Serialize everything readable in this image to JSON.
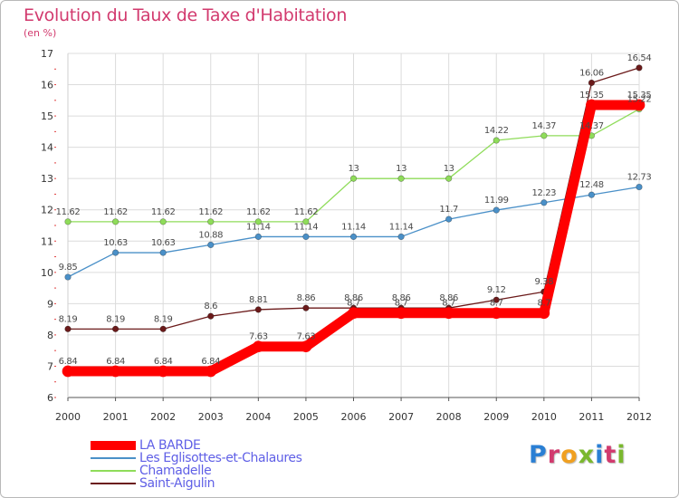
{
  "header": {
    "title": "Evolution du Taux de Taxe d'Habitation",
    "subtitle": "(en %)"
  },
  "logo": {
    "text": "Proxiti",
    "letter_colors": [
      "#2a7fd4",
      "#d23a6e",
      "#f0a020",
      "#7ab82e",
      "#2a7fd4",
      "#d23a6e",
      "#7ab82e"
    ]
  },
  "chart_data": {
    "type": "line",
    "title": "Evolution du Taux de Taxe d'Habitation",
    "subtitle": "(en %)",
    "x": [
      "2000",
      "2001",
      "2002",
      "2003",
      "2004",
      "2005",
      "2006",
      "2007",
      "2008",
      "2009",
      "2010",
      "2011",
      "2012"
    ],
    "ylim": [
      6,
      17
    ],
    "yticks": [
      6,
      7,
      8,
      9,
      10,
      11,
      12,
      13,
      14,
      15,
      16,
      17
    ],
    "grid": true,
    "legend_position": "bottom-left",
    "series": [
      {
        "name": "LA BARDE",
        "color": "#ff0000",
        "values": [
          6.84,
          6.84,
          6.84,
          6.84,
          7.63,
          7.63,
          8.7,
          8.7,
          8.7,
          8.7,
          8.7,
          15.35,
          15.35
        ],
        "labels": [
          "6.84",
          "6.84",
          "6.84",
          "6.84",
          "7.63",
          "7.63",
          "8.7",
          "8.7",
          "8.7",
          "8.7",
          "8.7",
          "15.35",
          "15.35"
        ]
      },
      {
        "name": "Les Eglisottes-et-Chalaures",
        "color": "#4a90c8",
        "values": [
          9.85,
          10.63,
          10.63,
          10.88,
          11.14,
          11.14,
          11.14,
          11.14,
          11.7,
          11.99,
          12.23,
          12.48,
          12.73
        ],
        "labels": [
          "9.85",
          "10.63",
          "10.63",
          "10.88",
          "11.14",
          "11.14",
          "11.14",
          "11.14",
          "11.7",
          "11.99",
          "12.23",
          "12.48",
          "12.73"
        ]
      },
      {
        "name": "Chamadelle",
        "color": "#8fdc5a",
        "values": [
          11.62,
          11.62,
          11.62,
          11.62,
          11.62,
          11.62,
          13,
          13,
          13,
          14.22,
          14.37,
          14.37,
          15.22
        ],
        "labels": [
          "11.62",
          "11.62",
          "11.62",
          "11.62",
          "11.62",
          "11.62",
          "13",
          "13",
          "13",
          "14.22",
          "14.37",
          "14.37",
          "15.22"
        ]
      },
      {
        "name": "Saint-Aigulin",
        "color": "#6b1a1a",
        "values": [
          8.19,
          8.19,
          8.19,
          8.6,
          8.81,
          8.86,
          8.86,
          8.86,
          8.86,
          9.12,
          9.38,
          16.06,
          16.54
        ],
        "labels": [
          "8.19",
          "8.19",
          "8.19",
          "8.6",
          "8.81",
          "8.86",
          "8.86",
          "8.86",
          "8.86",
          "9.12",
          "9.38",
          "16.06",
          "16.54"
        ]
      }
    ]
  }
}
